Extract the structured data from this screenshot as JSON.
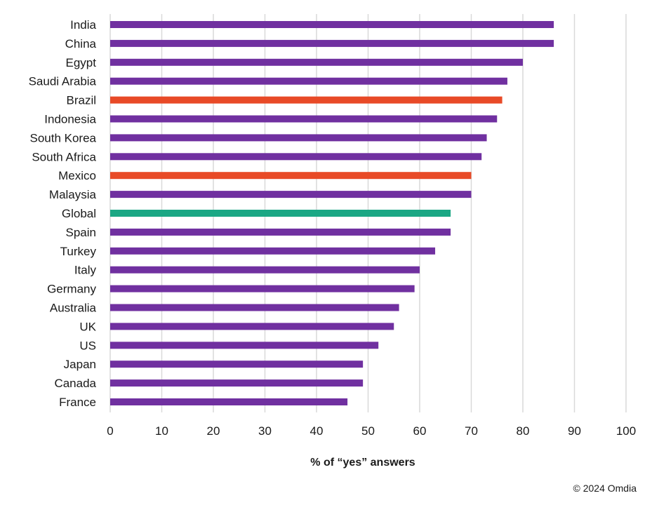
{
  "chart_data": {
    "type": "bar",
    "orientation": "horizontal",
    "categories": [
      "India",
      "China",
      "Egypt",
      "Saudi Arabia",
      "Brazil",
      "Indonesia",
      "South Korea",
      "South Africa",
      "Mexico",
      "Malaysia",
      "Global",
      "Spain",
      "Turkey",
      "Italy",
      "Germany",
      "Australia",
      "UK",
      "US",
      "Japan",
      "Canada",
      "France"
    ],
    "values": [
      86,
      86,
      80,
      77,
      76,
      75,
      73,
      72,
      70,
      70,
      66,
      66,
      63,
      60,
      59,
      56,
      55,
      52,
      49,
      49,
      46
    ],
    "bar_colors": [
      "#7030a0",
      "#7030a0",
      "#7030a0",
      "#7030a0",
      "#e84a27",
      "#7030a0",
      "#7030a0",
      "#7030a0",
      "#e84a27",
      "#7030a0",
      "#1ba784",
      "#7030a0",
      "#7030a0",
      "#7030a0",
      "#7030a0",
      "#7030a0",
      "#7030a0",
      "#7030a0",
      "#7030a0",
      "#7030a0",
      "#7030a0"
    ],
    "xlabel": "% of “yes” answers",
    "xlim": [
      0,
      100
    ],
    "xticks": [
      0,
      10,
      20,
      30,
      40,
      50,
      60,
      70,
      80,
      90,
      100
    ],
    "grid": "vertical",
    "legend": "none"
  },
  "copyright": "© 2024 Omdia",
  "colors": {
    "default": "#7030a0",
    "highlight": "#e84a27",
    "global": "#1ba784",
    "grid": "#d9d9d9"
  }
}
